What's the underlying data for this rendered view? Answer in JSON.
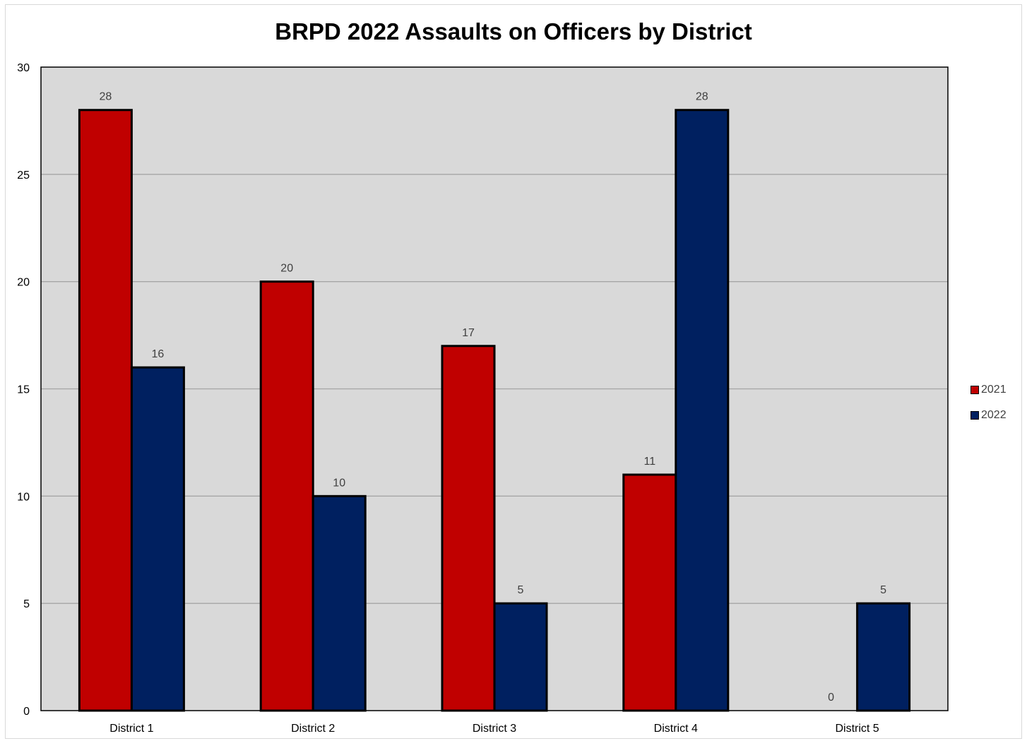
{
  "chart_data": {
    "type": "bar",
    "title": "BRPD 2022 Assaults on Officers by District",
    "xlabel": "",
    "ylabel": "",
    "categories": [
      "District 1",
      "District 2",
      "District 3",
      "District 4",
      "District 5"
    ],
    "series": [
      {
        "name": "2021",
        "values": [
          28,
          20,
          17,
          11,
          0
        ],
        "color": "#c00000"
      },
      {
        "name": "2022",
        "values": [
          16,
          10,
          5,
          28,
          5
        ],
        "color": "#002060"
      }
    ],
    "ylim": [
      0,
      30
    ],
    "yticks": [
      0,
      5,
      10,
      15,
      20,
      25,
      30
    ],
    "grid": true,
    "legend_position": "right",
    "plot_background": "#d9d9d9",
    "gridline_color": "#a6a6a6"
  }
}
